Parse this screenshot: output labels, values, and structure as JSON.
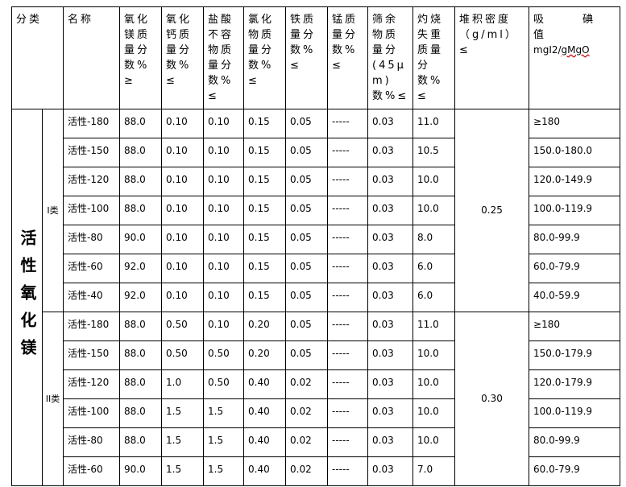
{
  "headers": {
    "category": "分类",
    "name": "名称",
    "mgo": "氧化镁质量分数%≥",
    "cao": "氧化钙质量分数%≤",
    "acid_insol": "盐酸不容物质量分数%≤",
    "chloride": "氯化物质量分数%≤",
    "iron": "铁质量分数%≤",
    "manganese": "锰质量分数%≤",
    "sieve": "筛余物质量分(45μm)数%≤",
    "loss": "灼烧失重质量分数%≤",
    "density": "堆积密度（g/ml）≤",
    "iodine": "吸 碘 值",
    "iodine_unit_a": "mgI2/",
    "iodine_unit_b": "gMgO"
  },
  "category_label": "活性氧化镁",
  "groups": [
    {
      "label": "I类",
      "density": "0.25",
      "rows": [
        [
          "活性-180",
          "88.0",
          "0.10",
          "0.10",
          "0.15",
          "0.05",
          "-----",
          "0.03",
          "11.0",
          "≥180"
        ],
        [
          "活性-150",
          "88.0",
          "0.10",
          "0.10",
          "0.15",
          "0.05",
          "-----",
          "0.03",
          "10.5",
          "150.0-180.0"
        ],
        [
          "活性-120",
          "88.0",
          "0.10",
          "0.10",
          "0.15",
          "0.05",
          "-----",
          "0.03",
          "10.0",
          "120.0-149.9"
        ],
        [
          "活性-100",
          "88.0",
          "0.10",
          "0.10",
          "0.15",
          "0.05",
          "-----",
          "0.03",
          "10.0",
          "100.0-119.9"
        ],
        [
          "活性-80",
          "90.0",
          "0.10",
          "0.10",
          "0.15",
          "0.05",
          "-----",
          "0.03",
          "8.0",
          "80.0-99.9"
        ],
        [
          "活性-60",
          "92.0",
          "0.10",
          "0.10",
          "0.15",
          "0.05",
          "-----",
          "0.03",
          "6.0",
          "60.0-79.9"
        ],
        [
          "活性-40",
          "92.0",
          "0.10",
          "0.10",
          "0.15",
          "0.05",
          "-----",
          "0.03",
          "6.0",
          "40.0-59.9"
        ]
      ]
    },
    {
      "label": "II类",
      "density": "0.30",
      "rows": [
        [
          "活性-180",
          "88.0",
          "0.50",
          "0.10",
          "0.20",
          "0.05",
          "-----",
          "0.03",
          "11.0",
          "≥180"
        ],
        [
          "活性-150",
          "88.0",
          "0.50",
          "0.50",
          "0.20",
          "0.05",
          "-----",
          "0.03",
          "10.0",
          "150.0-179.9"
        ],
        [
          "活性-120",
          "88.0",
          "1.0",
          "0.50",
          "0.40",
          "0.02",
          "-----",
          "0.03",
          "10.0",
          "120.0-179.9"
        ],
        [
          "活性-100",
          "88.0",
          "1.5",
          "1.5",
          "0.40",
          "0.02",
          "-----",
          "0.03",
          "10.0",
          "100.0-119.9"
        ],
        [
          "活性-80",
          "88.0",
          "1.5",
          "1.5",
          "0.40",
          "0.02",
          "-----",
          "0.03",
          "10.0",
          "80.0-99.9"
        ],
        [
          "活性-60",
          "90.0",
          "1.5",
          "1.5",
          "0.40",
          "0.02",
          "-----",
          "0.03",
          "7.0",
          "60.0-79.9"
        ]
      ]
    }
  ]
}
